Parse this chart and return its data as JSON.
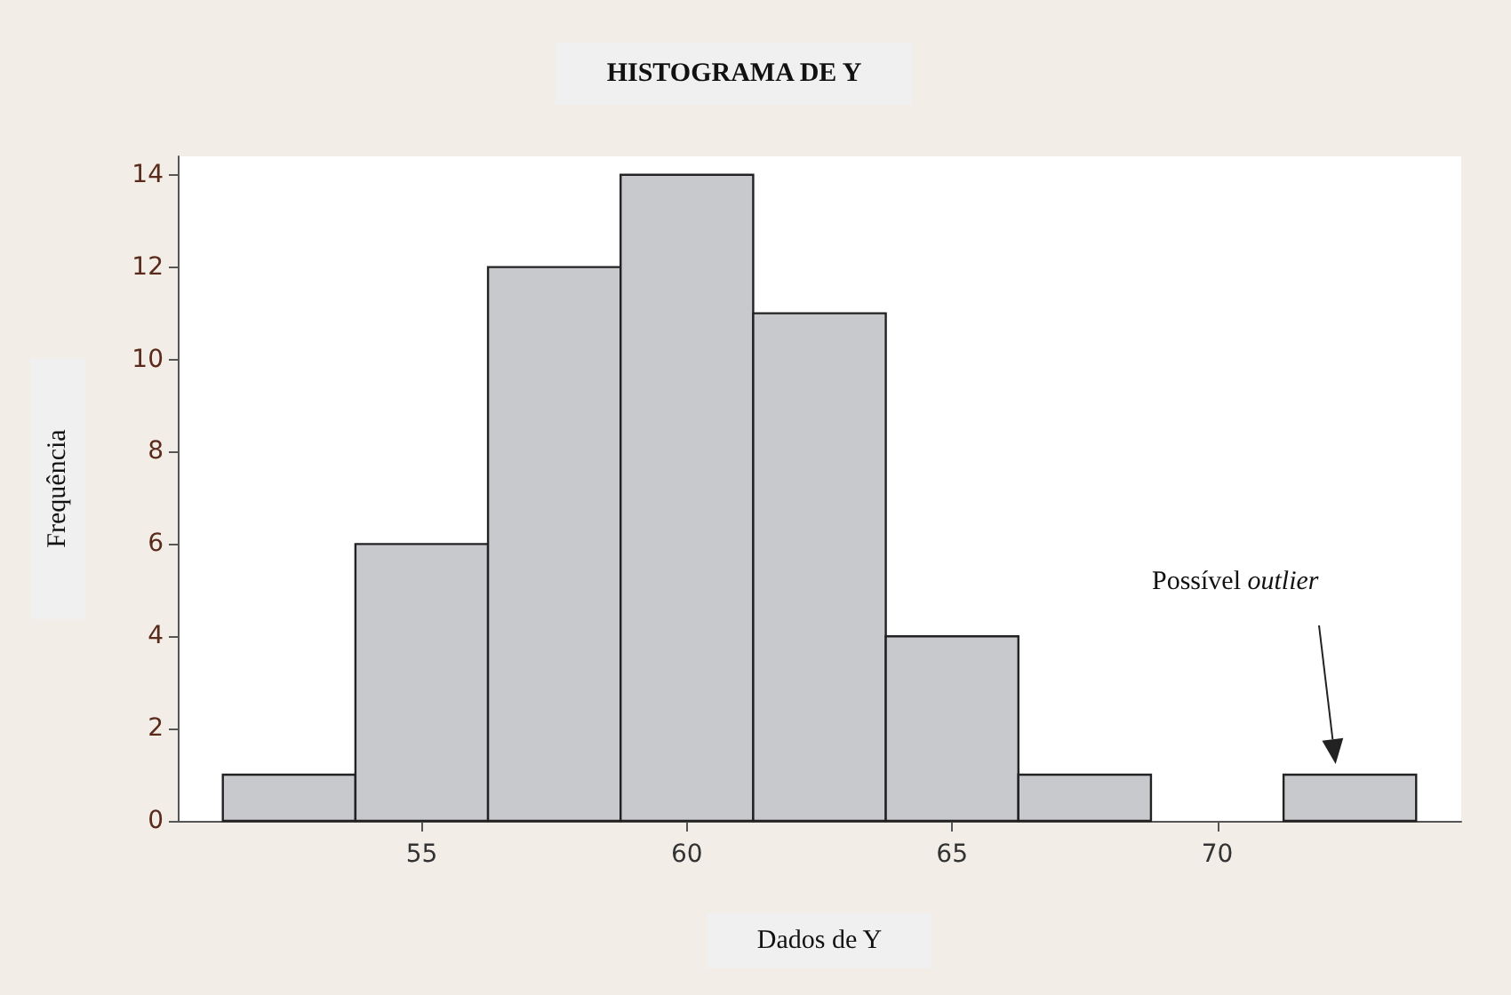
{
  "chart_data": {
    "type": "histogram",
    "title": "HISTOGRAMA DE Y",
    "xlabel": "Dados de Y",
    "ylabel": "Frequência",
    "bins": [
      51.25,
      53.75,
      56.25,
      58.75,
      61.25,
      63.75,
      66.25,
      68.75,
      71.25,
      73.75
    ],
    "values": [
      1,
      6,
      12,
      14,
      11,
      4,
      1,
      0,
      1
    ],
    "color": "#c8c9cc",
    "xlim": [
      50.4,
      74.6
    ],
    "xticks": [
      55,
      60,
      65,
      70
    ],
    "ylim": [
      0,
      14.4
    ],
    "yticks": [
      0,
      2,
      4,
      6,
      8,
      10,
      12,
      14
    ],
    "annotations": [
      "Possível outlier"
    ],
    "grid": false,
    "legend": false
  }
}
